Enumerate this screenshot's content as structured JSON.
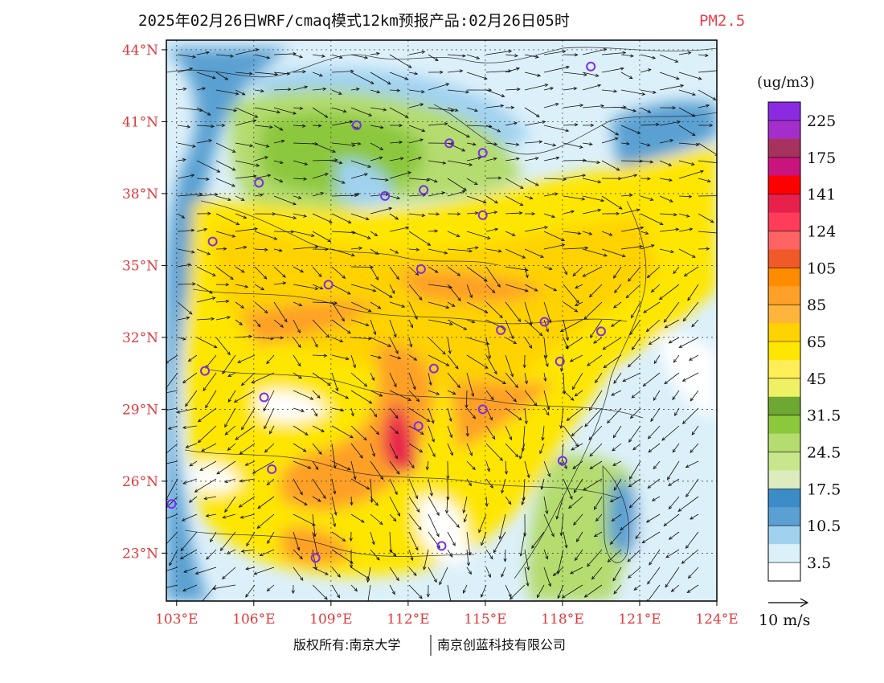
{
  "title": {
    "main": "2025年02月26日WRF/cmaq模式12km预报产品:02月26日05时",
    "variable": "PM2.5"
  },
  "map": {
    "lon_labels": [
      "103°E",
      "106°E",
      "109°E",
      "112°E",
      "115°E",
      "118°E",
      "121°E",
      "124°E"
    ],
    "lat_labels": [
      "44°N",
      "41°N",
      "38°N",
      "35°N",
      "32°N",
      "29°N",
      "26°N",
      "23°N"
    ],
    "lon_range": [
      102.6,
      124
    ],
    "lat_range": [
      21,
      44.4
    ]
  },
  "colorbar": {
    "unit": "(ug/m3)",
    "labels": [
      "225",
      "175",
      "141",
      "124",
      "105",
      "85",
      "65",
      "45",
      "31.5",
      "24.5",
      "17.5",
      "10.5",
      "3.5"
    ],
    "colors_top_to_bottom": [
      "#8a2be2",
      "#a42ec9",
      "#a8325e",
      "#c8147c",
      "#ff0000",
      "#e8204c",
      "#ff3c5a",
      "#ff6464",
      "#f05a28",
      "#ff8c00",
      "#ffa028",
      "#ffb43c",
      "#ffd200",
      "#ffe600",
      "#ffee55",
      "#f0f064",
      "#6ea832",
      "#8cc83c",
      "#b4dc6e",
      "#c8e68c",
      "#dcecbe",
      "#3c8cc8",
      "#5aa0d2",
      "#a0d2f0",
      "#dcf0fa",
      "#ffffff"
    ]
  },
  "wind_reference": {
    "label": "10 m/s"
  },
  "credits": {
    "left": "版权所有:南京大学",
    "right": "南京创蓝科技有限公司"
  },
  "station_marker_color": "#7b2cf0"
}
